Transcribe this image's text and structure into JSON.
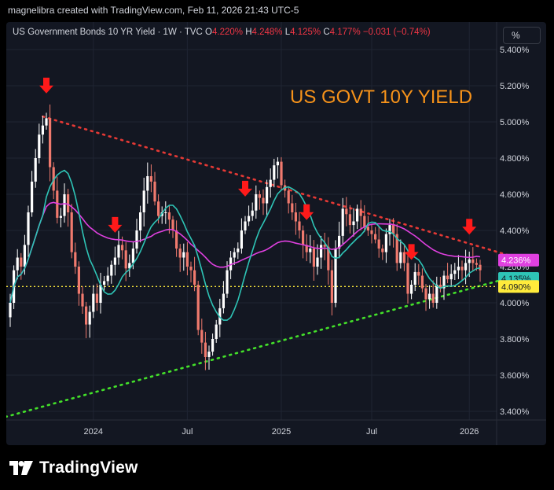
{
  "header": {
    "attribution": "magnelibra created with TradingView.com, Feb 11, 2026 21:43 UTC-5"
  },
  "legend": {
    "title": "US Government Bonds 10 YR Yield · 1W · TVC",
    "o_key": "O",
    "o_val": "4.220%",
    "h_key": "H",
    "h_val": "4.248%",
    "l_key": "L",
    "l_val": "4.125%",
    "c_key": "C",
    "c_val": "4.177%",
    "change": "−0.031 (−0.74%)"
  },
  "scale_button": "%",
  "annotation_text": "US GOVT 10Y YIELD",
  "footer": {
    "brand": "TradingView"
  },
  "colors": {
    "background": "#131722",
    "up": "#ffffff",
    "down": "#f07a6e",
    "ma_fast": "#2ec4b6",
    "ma_slow": "#e040e0",
    "resistance": "#e53935",
    "support": "#43e02a",
    "level": "#ffeb3b",
    "annotation": "#f7931a",
    "arrows": "#ff1a1a"
  },
  "chart_data": {
    "type": "candlestick",
    "title": "US Government Bonds 10 YR Yield",
    "timeframe": "1W",
    "y_unit": "%",
    "ylim": [
      3.35,
      5.45
    ],
    "y_ticks": [
      "5.400%",
      "5.200%",
      "5.000%",
      "4.800%",
      "4.600%",
      "4.400%",
      "4.200%",
      "4.000%",
      "3.800%",
      "3.600%",
      "3.400%"
    ],
    "y_tick_values": [
      5.4,
      5.2,
      5.0,
      4.8,
      4.6,
      4.4,
      4.2,
      4.0,
      3.8,
      3.6,
      3.4
    ],
    "x_ticks": [
      {
        "label": "2024",
        "week": 23
      },
      {
        "label": "Jul",
        "week": 49
      },
      {
        "label": "2025",
        "week": 75
      },
      {
        "label": "Jul",
        "week": 100
      },
      {
        "label": "2026",
        "week": 127
      }
    ],
    "closes": [
      4.0,
      4.18,
      4.25,
      4.2,
      4.32,
      4.5,
      4.67,
      4.8,
      4.93,
      4.98,
      5.02,
      4.75,
      4.62,
      4.47,
      4.48,
      4.6,
      4.5,
      4.28,
      4.2,
      4.05,
      3.98,
      3.88,
      3.95,
      4.05,
      4.0,
      4.1,
      4.12,
      4.15,
      4.21,
      4.25,
      4.32,
      4.29,
      4.19,
      4.22,
      4.3,
      4.4,
      4.5,
      4.62,
      4.7,
      4.67,
      4.56,
      4.48,
      4.5,
      4.5,
      4.46,
      4.4,
      4.3,
      4.25,
      4.28,
      4.2,
      4.18,
      4.1,
      3.85,
      3.78,
      3.7,
      3.73,
      3.8,
      3.88,
      3.97,
      4.05,
      4.18,
      4.25,
      4.28,
      4.3,
      4.4,
      4.45,
      4.48,
      4.51,
      4.6,
      4.58,
      4.55,
      4.64,
      4.68,
      4.76,
      4.78,
      4.65,
      4.62,
      4.55,
      4.5,
      4.45,
      4.4,
      4.32,
      4.28,
      4.3,
      4.2,
      4.25,
      4.32,
      4.31,
      4.18,
      4.0,
      4.3,
      4.37,
      4.52,
      4.49,
      4.43,
      4.45,
      4.52,
      4.48,
      4.42,
      4.4,
      4.38,
      4.35,
      4.3,
      4.28,
      4.38,
      4.43,
      4.38,
      4.22,
      4.28,
      4.22,
      4.05,
      4.1,
      4.17,
      4.15,
      4.08,
      4.02,
      4.05,
      4.0,
      4.1,
      4.08,
      4.15,
      4.13,
      4.16,
      4.18,
      4.2,
      4.18,
      4.22,
      4.24,
      4.22,
      4.21,
      4.18
    ],
    "sma_fast_label": "4.135%",
    "sma_slow_label": "4.236%",
    "level_label": "4.090%",
    "level_value": 4.09,
    "resistance_line": {
      "start": {
        "week": 9,
        "value": 5.03
      },
      "end": {
        "week": 140,
        "value": 4.25
      }
    },
    "support_line": {
      "start": {
        "week": -3,
        "value": 3.36
      },
      "end": {
        "week": 142,
        "value": 4.16
      }
    },
    "arrow_weeks": [
      10,
      29,
      65,
      82,
      111,
      127
    ]
  }
}
